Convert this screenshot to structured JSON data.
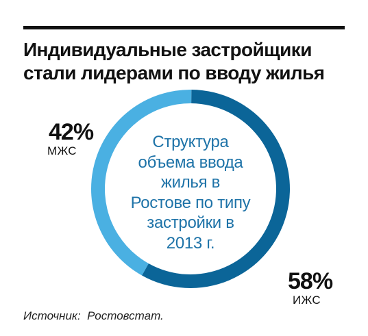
{
  "title_lines": [
    "Индивидуальные застройщики",
    "стали лидерами по вводу жилья"
  ],
  "source": "Источник:  Ростовстат.",
  "colors": {
    "izhs": "#0b6598",
    "mzhs": "#4ab0e2",
    "center_text": "#1e73a8"
  },
  "chart_data": {
    "type": "pie",
    "donut": true,
    "center_label_lines": [
      "Структура",
      "объема ввода",
      "жилья в",
      "Ростове по типу",
      "застройки в",
      "2013 г."
    ],
    "series": [
      {
        "name": "ИЖС",
        "value": 58,
        "label": "58%"
      },
      {
        "name": "МЖС",
        "value": 42,
        "label": "42%"
      }
    ]
  }
}
